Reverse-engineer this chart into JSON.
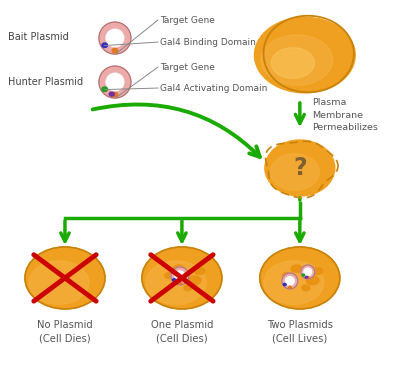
{
  "bg_color": "#ffffff",
  "cell_fill_dark": "#F0A020",
  "cell_fill_mid": "#F5B040",
  "cell_fill_light": "#FAC860",
  "cell_border": "#C8820A",
  "cell_spots": "#E89010",
  "plasmid_outer": "#EDAAAA",
  "plasmid_inner": "#ffffff",
  "orange_marker": "#E07820",
  "bait_marker": "#3030C0",
  "hunter_green": "#20A020",
  "hunter_purple": "#7030A0",
  "arrow_green": "#1AAA00",
  "red_x": "#CC0000",
  "text_color": "#555555",
  "text_dark": "#444444",
  "label_bait": "Bait Plasmid",
  "label_hunter": "Hunter Plasmid",
  "label_target1": "Target Gene",
  "label_gal4bd": "Gal4 Binding Domain",
  "label_target2": "Target Gene",
  "label_gal4ad": "Gal4 Activating Domain",
  "label_plasma": "Plasma\nMembrane\nPermeabilizes",
  "label_no_plasmid": "No Plasmid\n(Cell Dies)",
  "label_one_plasmid": "One Plasmid\n(Cell Dies)",
  "label_two_plasmids": "Two Plasmids\n(Cell Lives)",
  "question_mark": "?",
  "figsize": [
    3.96,
    3.65
  ],
  "dpi": 100,
  "xlim": [
    0,
    396
  ],
  "ylim": [
    0,
    365
  ]
}
